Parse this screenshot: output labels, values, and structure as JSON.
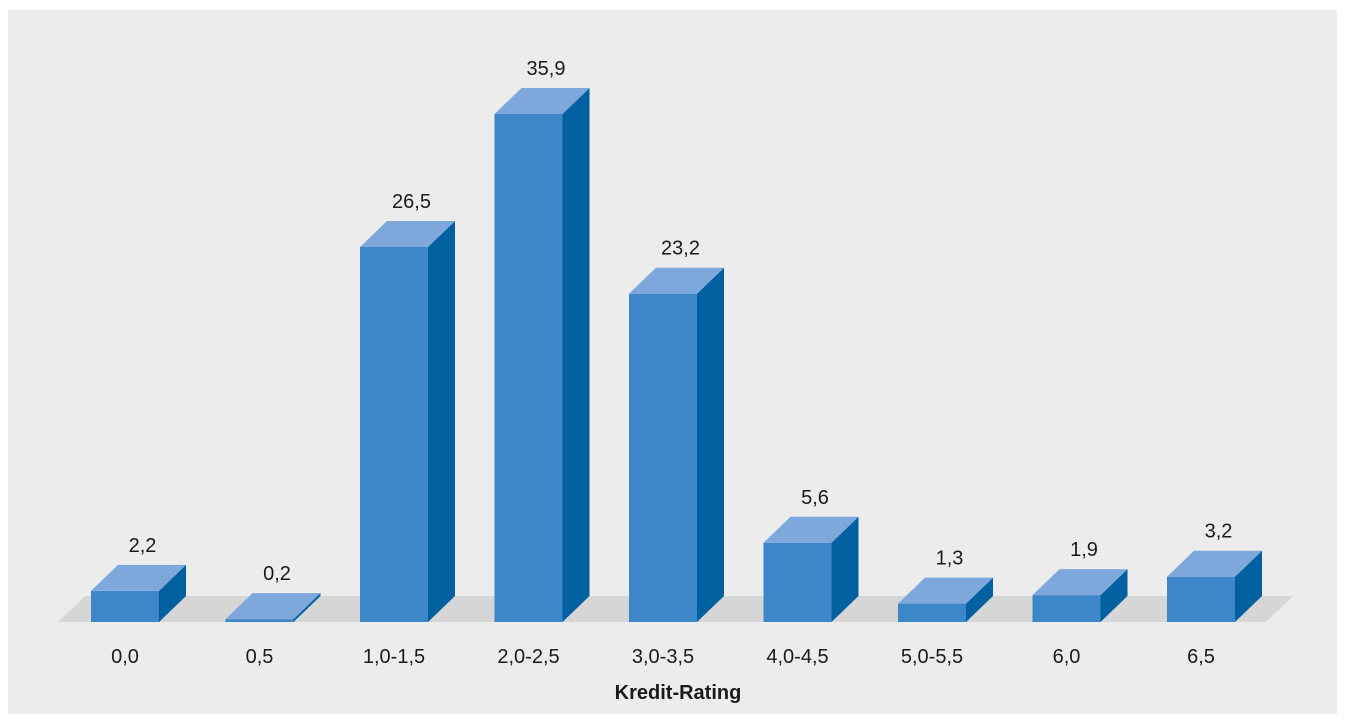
{
  "chart_data": {
    "type": "bar",
    "categories": [
      "0,0",
      "0,5",
      "1,0-1,5",
      "2,0-2,5",
      "3,0-3,5",
      "4,0-4,5",
      "5,0-5,5",
      "6,0",
      "6,5"
    ],
    "values": [
      2.2,
      0.2,
      26.5,
      35.9,
      23.2,
      5.6,
      1.3,
      1.9,
      3.2
    ],
    "value_labels": [
      "2,2",
      "0,2",
      "26,5",
      "35,9",
      "23,2",
      "5,6",
      "1,3",
      "1,9",
      "3,2"
    ],
    "xlabel": "Kredit-Rating",
    "ylabel": "",
    "title": "",
    "ylim": [
      0,
      35.9
    ],
    "grid": false,
    "legend": "none",
    "style": "3d-columns",
    "colors": {
      "front": "#3d87c9",
      "top": "#7ea8dc",
      "side": "#0060a0",
      "floor": "#d6d6d6",
      "panel": "#ececec"
    }
  }
}
